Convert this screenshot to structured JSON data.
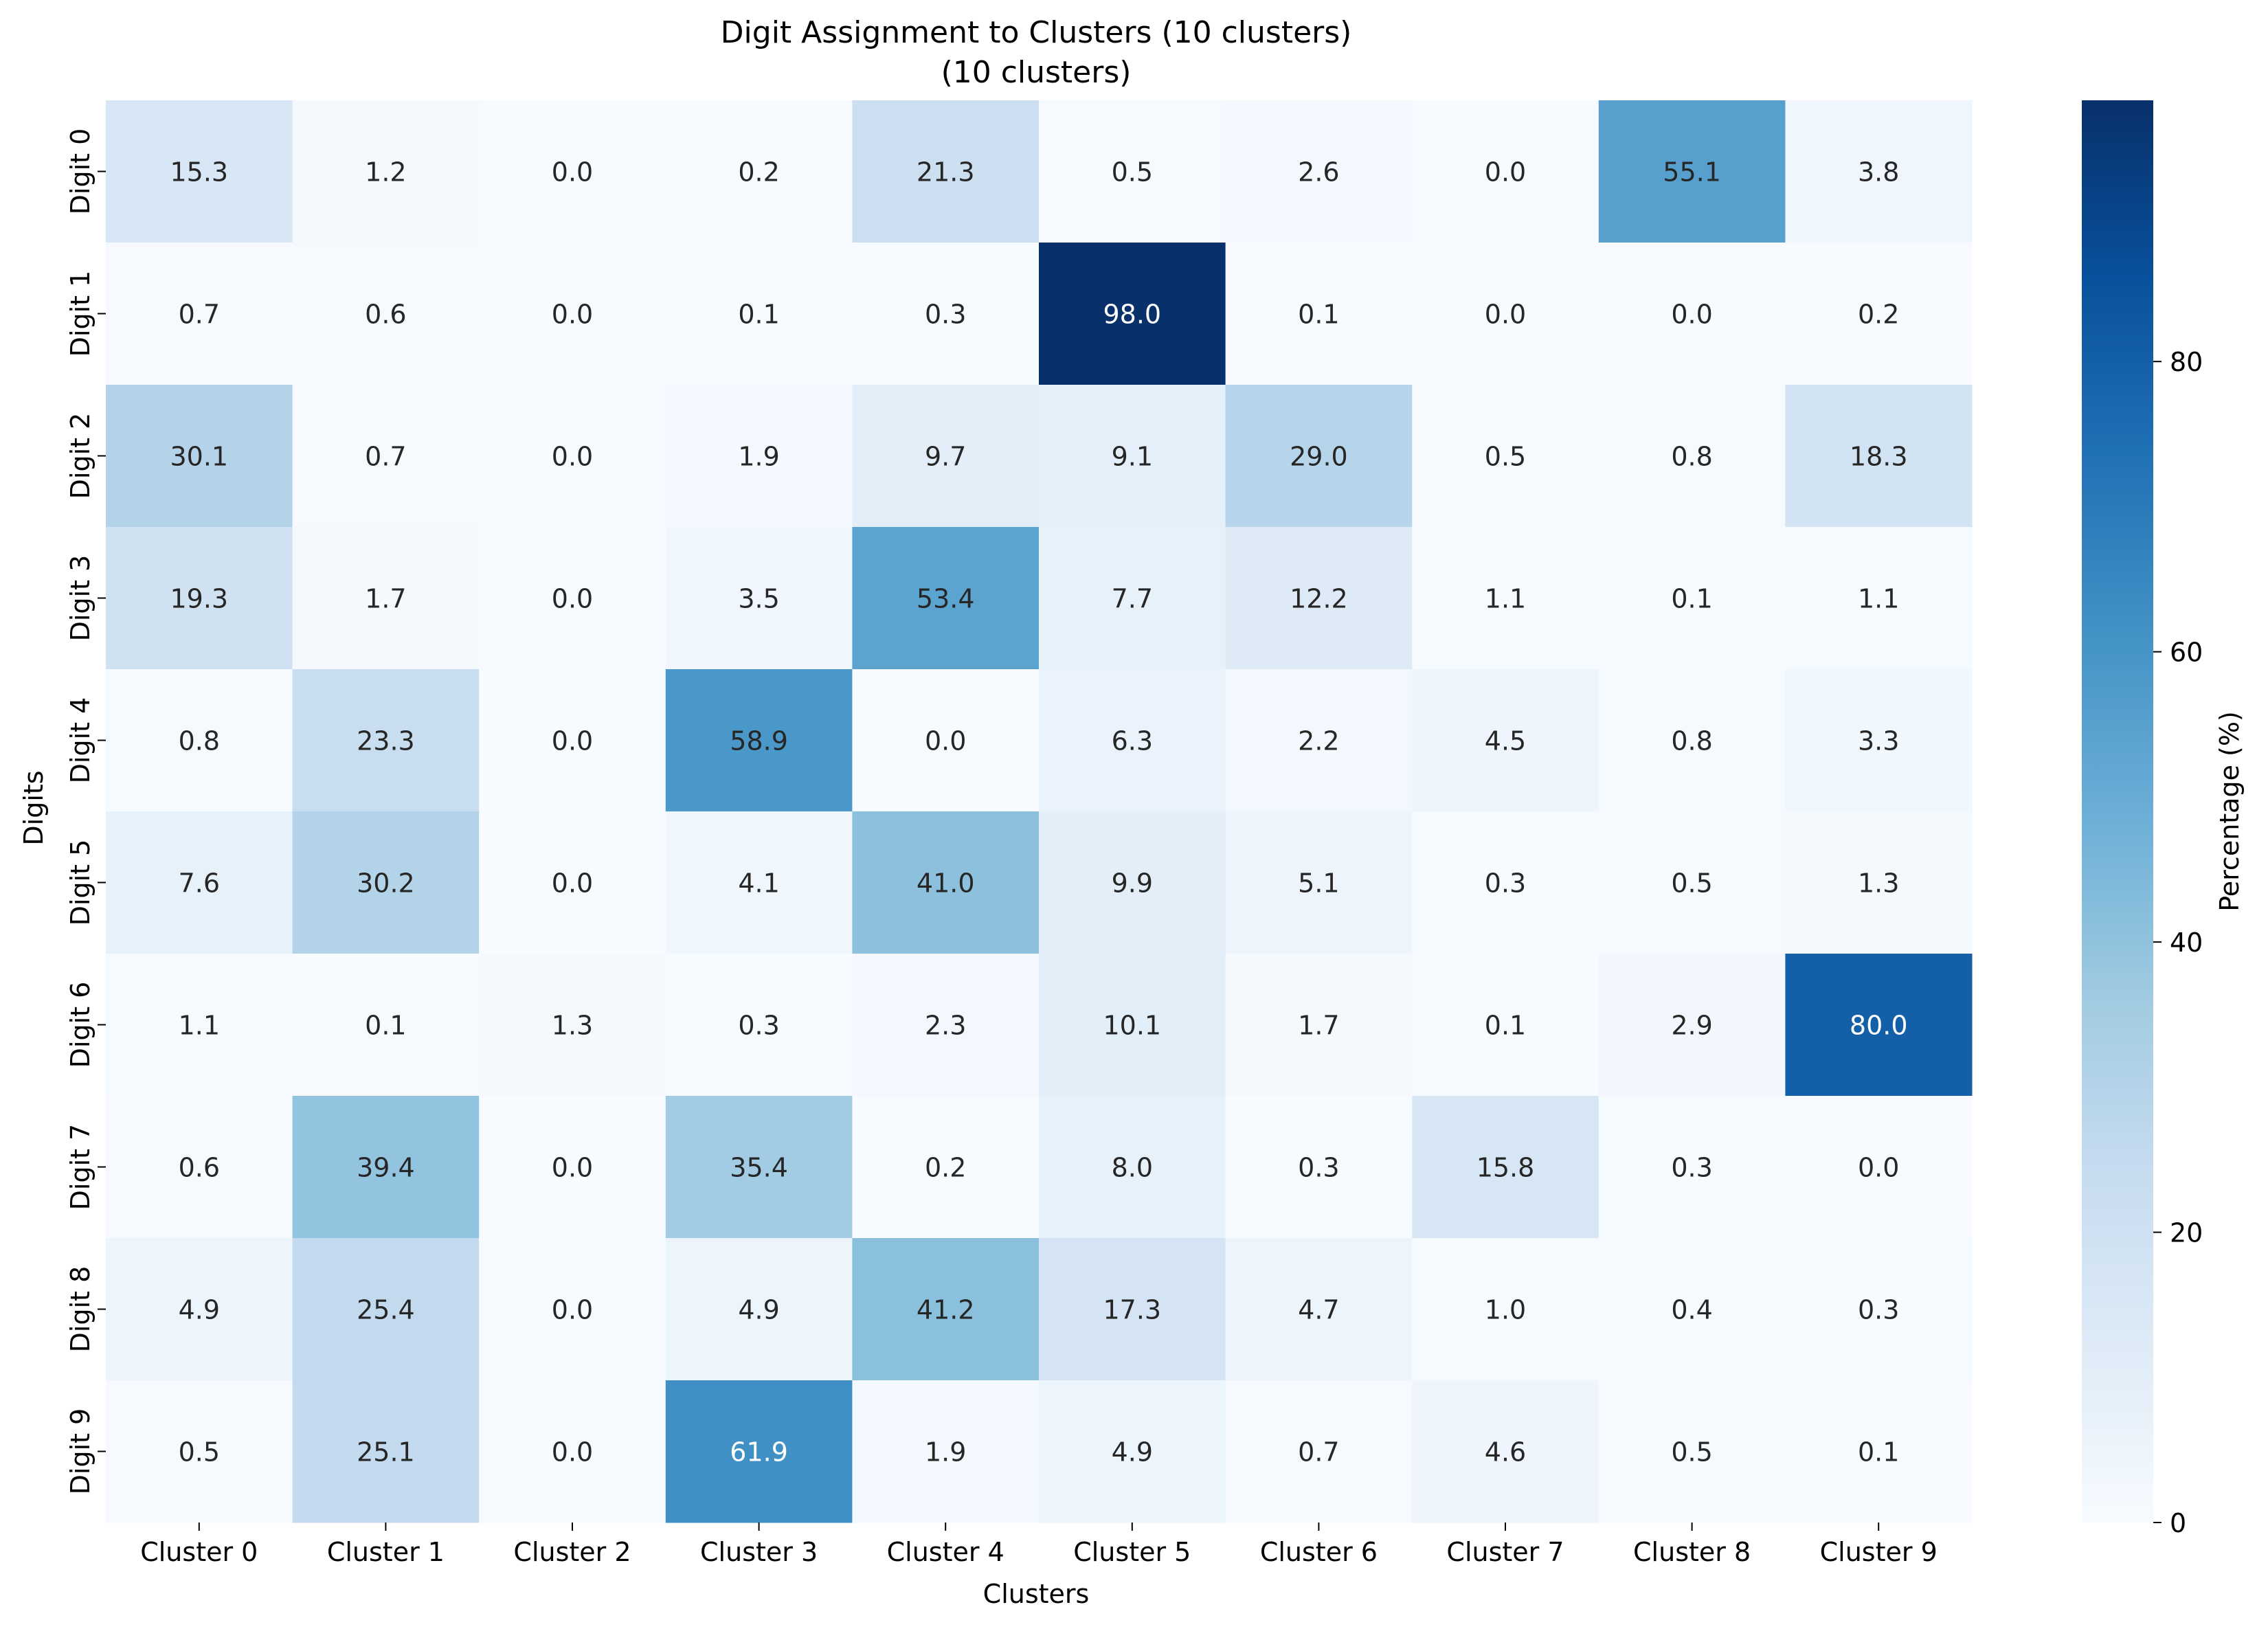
{
  "chart_data": {
    "type": "heatmap",
    "title_line1": "Digit Assignment to Clusters (10 clusters)",
    "title_line2": "(10 clusters)",
    "xlabel": "Clusters",
    "ylabel": "Digits",
    "x_categories": [
      "Cluster 0",
      "Cluster 1",
      "Cluster 2",
      "Cluster 3",
      "Cluster 4",
      "Cluster 5",
      "Cluster 6",
      "Cluster 7",
      "Cluster 8",
      "Cluster 9"
    ],
    "y_categories": [
      "Digit 0",
      "Digit 1",
      "Digit 2",
      "Digit 3",
      "Digit 4",
      "Digit 5",
      "Digit 6",
      "Digit 7",
      "Digit 8",
      "Digit 9"
    ],
    "values": [
      [
        15.3,
        1.2,
        0.0,
        0.2,
        21.3,
        0.5,
        2.6,
        0.0,
        55.1,
        3.8
      ],
      [
        0.7,
        0.6,
        0.0,
        0.1,
        0.3,
        98.0,
        0.1,
        0.0,
        0.0,
        0.2
      ],
      [
        30.1,
        0.7,
        0.0,
        1.9,
        9.7,
        9.1,
        29.0,
        0.5,
        0.8,
        18.3
      ],
      [
        19.3,
        1.7,
        0.0,
        3.5,
        53.4,
        7.7,
        12.2,
        1.1,
        0.1,
        1.1
      ],
      [
        0.8,
        23.3,
        0.0,
        58.9,
        0.0,
        6.3,
        2.2,
        4.5,
        0.8,
        3.3
      ],
      [
        7.6,
        30.2,
        0.0,
        4.1,
        41.0,
        9.9,
        5.1,
        0.3,
        0.5,
        1.3
      ],
      [
        1.1,
        0.1,
        1.3,
        0.3,
        2.3,
        10.1,
        1.7,
        0.1,
        2.9,
        80.0
      ],
      [
        0.6,
        39.4,
        0.0,
        35.4,
        0.2,
        8.0,
        0.3,
        15.8,
        0.3,
        0.0
      ],
      [
        4.9,
        25.4,
        0.0,
        4.9,
        41.2,
        17.3,
        4.7,
        1.0,
        0.4,
        0.3
      ],
      [
        0.5,
        25.1,
        0.0,
        61.9,
        1.9,
        4.9,
        0.7,
        4.6,
        0.5,
        0.1
      ]
    ],
    "colorbar": {
      "label": "Percentage (%)",
      "ticks": [
        "0",
        "20",
        "40",
        "60",
        "80"
      ],
      "range": [
        0,
        98.0
      ],
      "colormap": "Blues"
    }
  }
}
